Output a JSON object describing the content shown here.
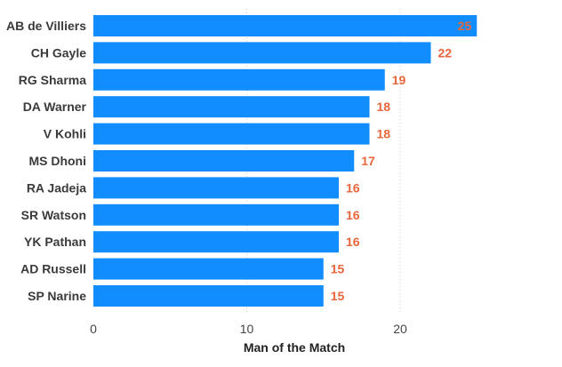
{
  "chart_data": {
    "type": "bar",
    "orientation": "horizontal",
    "categories": [
      "AB de Villiers",
      "CH Gayle",
      "RG Sharma",
      "DA Warner",
      "V Kohli",
      "MS Dhoni",
      "RA Jadeja",
      "SR Watson",
      "YK Pathan",
      "AD Russell",
      "SP Narine"
    ],
    "values": [
      25,
      22,
      19,
      18,
      18,
      17,
      16,
      16,
      16,
      15,
      15
    ],
    "xlabel": "Man of the Match",
    "ylabel": "",
    "xlim": [
      0,
      30
    ],
    "xticks": [
      0,
      10,
      20
    ],
    "grid": "vertical-dotted",
    "legend": "none",
    "bar_color": "#118dff",
    "value_label_color": "#e8663b",
    "top_value_label_color": "#e8663b"
  }
}
